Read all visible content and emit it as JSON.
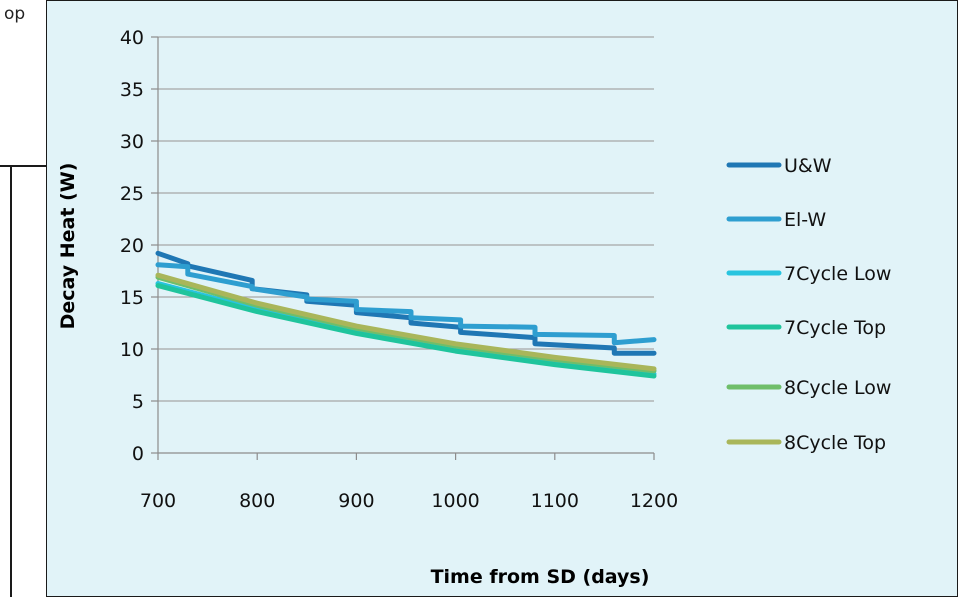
{
  "behind_text": "op",
  "chart_data": {
    "type": "line",
    "title": "",
    "xlabel": "Time from SD (days)",
    "ylabel": "Decay Heat (W)",
    "xlim": [
      700,
      1200
    ],
    "ylim": [
      0,
      40
    ],
    "x_ticks": [
      700,
      800,
      900,
      1000,
      1100,
      1200
    ],
    "y_ticks": [
      0,
      5,
      10,
      15,
      20,
      25,
      30,
      35,
      40
    ],
    "grid": "horizontal",
    "legend_position": "right",
    "series": [
      {
        "name": "U&W",
        "color": "#1f77b4",
        "points": [
          [
            700,
            19.2
          ],
          [
            730,
            18.2
          ],
          [
            730,
            18.0
          ],
          [
            795,
            16.6
          ],
          [
            795,
            15.8
          ],
          [
            850,
            15.2
          ],
          [
            850,
            14.6
          ],
          [
            900,
            14.2
          ],
          [
            900,
            13.5
          ],
          [
            955,
            13.0
          ],
          [
            955,
            12.5
          ],
          [
            1005,
            12.1
          ],
          [
            1005,
            11.6
          ],
          [
            1080,
            11.1
          ],
          [
            1080,
            10.5
          ],
          [
            1160,
            10.1
          ],
          [
            1160,
            9.6
          ],
          [
            1200,
            9.6
          ]
        ]
      },
      {
        "name": "El-W",
        "color": "#2e9ed0",
        "points": [
          [
            700,
            18.1
          ],
          [
            730,
            17.9
          ],
          [
            730,
            17.2
          ],
          [
            795,
            16.0
          ],
          [
            795,
            15.8
          ],
          [
            850,
            15.0
          ],
          [
            850,
            14.8
          ],
          [
            900,
            14.6
          ],
          [
            900,
            13.8
          ],
          [
            955,
            13.6
          ],
          [
            955,
            13.0
          ],
          [
            1005,
            12.8
          ],
          [
            1005,
            12.2
          ],
          [
            1080,
            12.1
          ],
          [
            1080,
            11.4
          ],
          [
            1160,
            11.3
          ],
          [
            1160,
            10.6
          ],
          [
            1200,
            10.9
          ]
        ]
      },
      {
        "name": "7Cycle Low",
        "color": "#28c4df",
        "points": [
          [
            700,
            16.3
          ],
          [
            800,
            13.8
          ],
          [
            900,
            11.6
          ],
          [
            1000,
            9.9
          ],
          [
            1100,
            8.6
          ],
          [
            1200,
            7.6
          ]
        ]
      },
      {
        "name": "7Cycle Top",
        "color": "#1fc49c",
        "points": [
          [
            700,
            16.1
          ],
          [
            800,
            13.6
          ],
          [
            900,
            11.5
          ],
          [
            1000,
            9.8
          ],
          [
            1100,
            8.5
          ],
          [
            1200,
            7.4
          ]
        ]
      },
      {
        "name": "8Cycle Low",
        "color": "#6fbe6a",
        "points": [
          [
            700,
            16.9
          ],
          [
            800,
            14.2
          ],
          [
            900,
            12.0
          ],
          [
            1000,
            10.3
          ],
          [
            1100,
            9.0
          ],
          [
            1200,
            7.9
          ]
        ]
      },
      {
        "name": "8Cycle Top",
        "color": "#a9b65a",
        "points": [
          [
            700,
            17.1
          ],
          [
            800,
            14.4
          ],
          [
            900,
            12.2
          ],
          [
            1000,
            10.5
          ],
          [
            1100,
            9.2
          ],
          [
            1200,
            8.1
          ]
        ]
      }
    ]
  }
}
